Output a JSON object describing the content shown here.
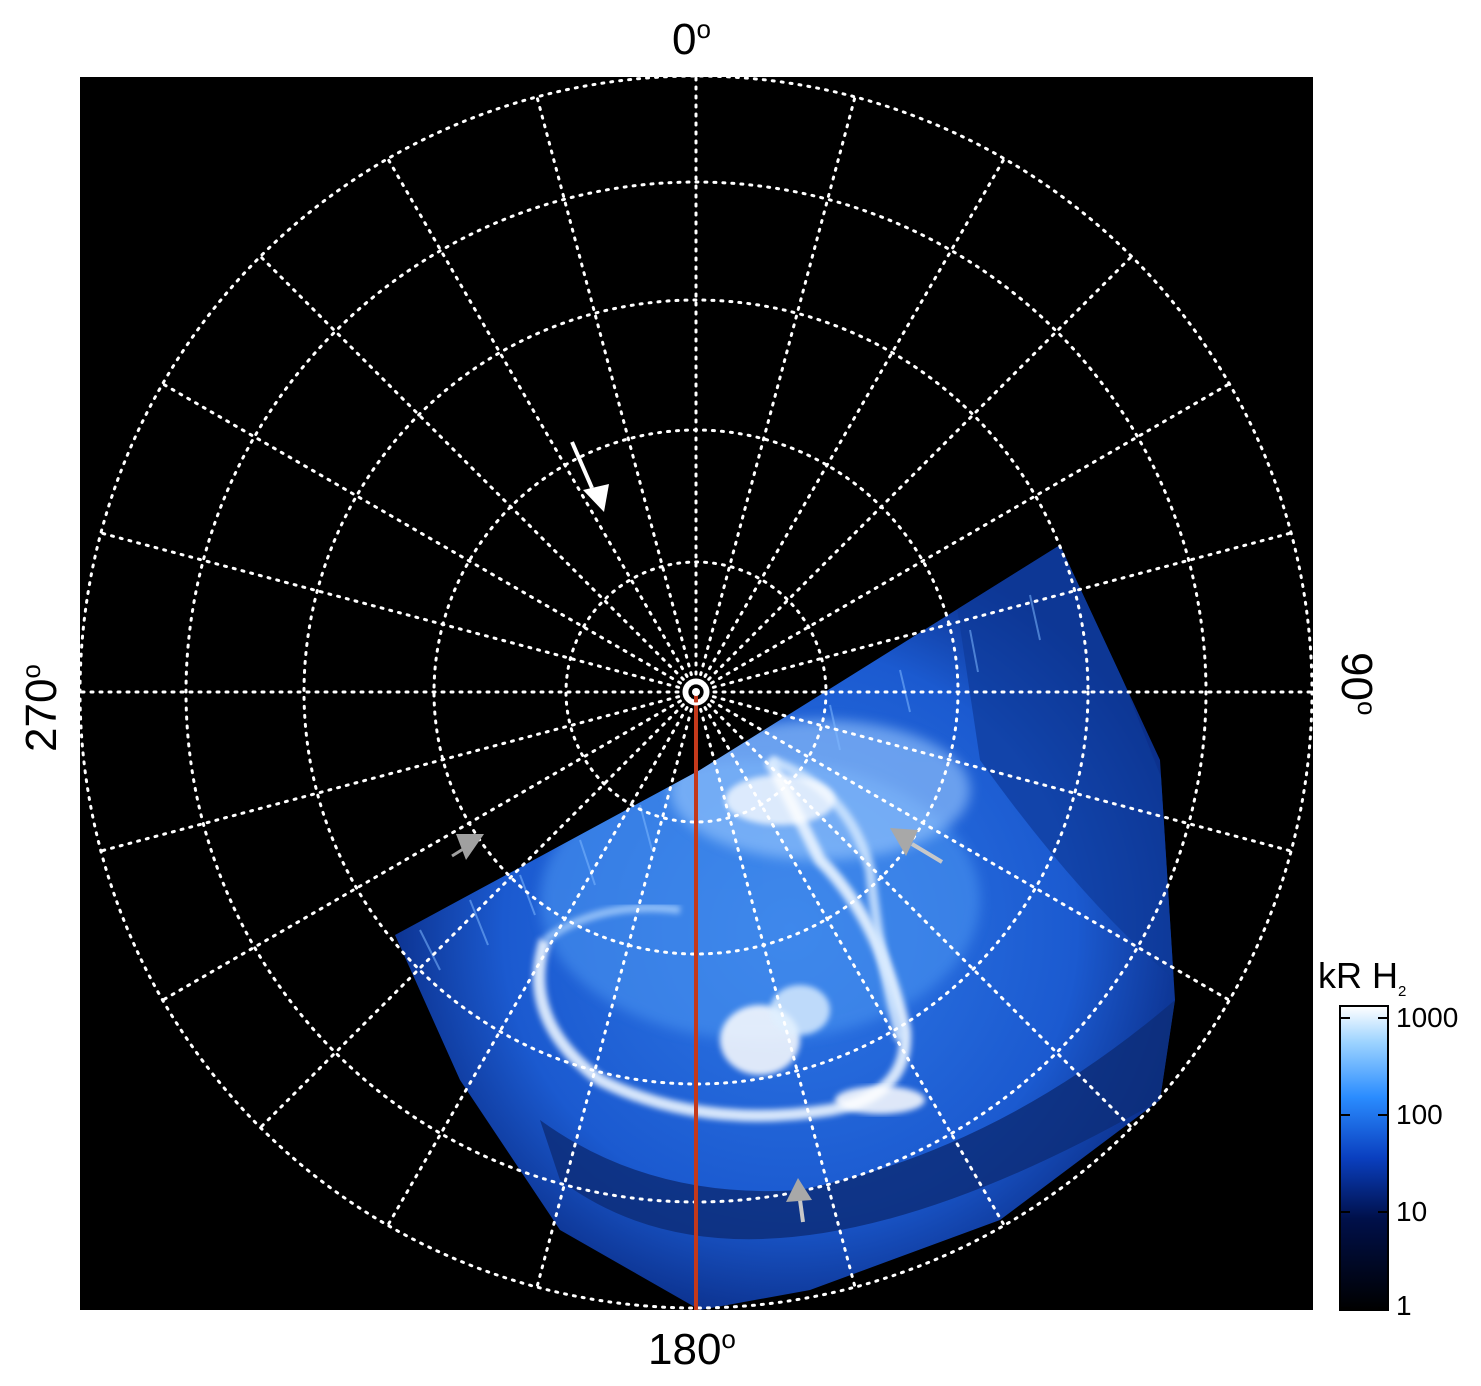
{
  "figure": {
    "projection": "polar",
    "longitude_labels": {
      "top": "0",
      "right": "90",
      "bottom": "180",
      "left": "270",
      "degree_symbol": "o"
    },
    "colorbar": {
      "title_main": "kR H",
      "title_subscript": "2",
      "scale": "log",
      "ticks": [
        "1000",
        "100",
        "10",
        "1"
      ],
      "colors": [
        "#000000",
        "#00104a",
        "#0a3fbf",
        "#2a8cff",
        "#9cd3ff",
        "#ffffff"
      ]
    },
    "colors": {
      "background": "#000000",
      "grid": "#ffffff",
      "meridian_line": "#c4391b",
      "arrow_white": "#ffffff",
      "arrow_grey": "#a0a0a0"
    },
    "grid": {
      "meridian_count": 24,
      "circle_count": 5,
      "style": "dotted"
    },
    "arrows": [
      {
        "name": "arrow-upper-white",
        "color": "white"
      },
      {
        "name": "arrow-left-grey",
        "color": "grey"
      },
      {
        "name": "arrow-right-grey",
        "color": "grey"
      },
      {
        "name": "arrow-bottom-grey",
        "color": "grey"
      }
    ]
  }
}
